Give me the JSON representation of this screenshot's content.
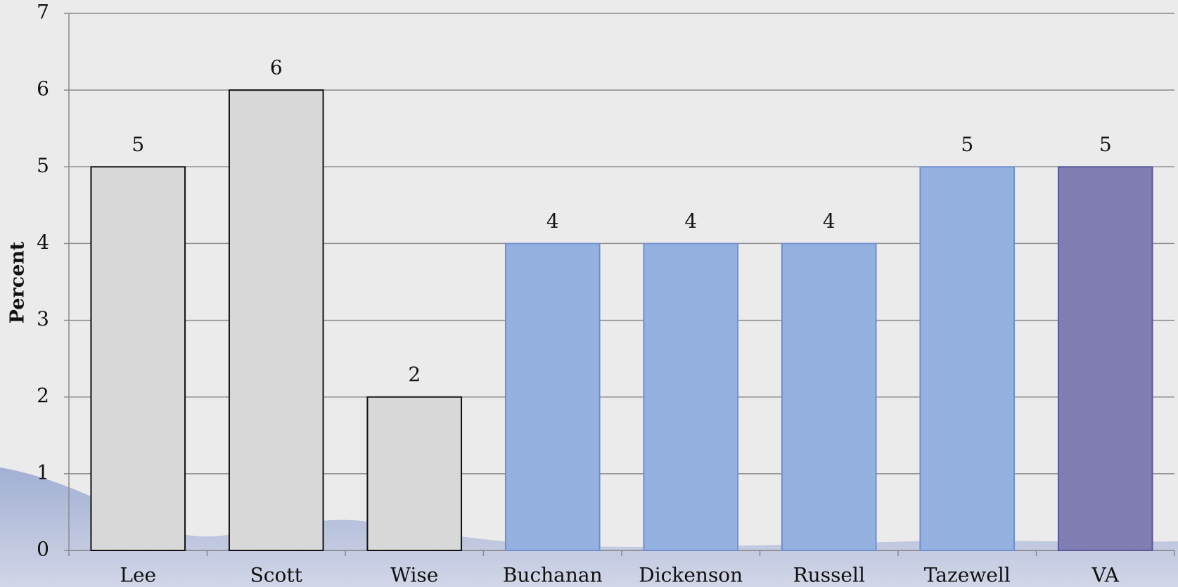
{
  "chart_data": {
    "type": "bar",
    "y_label": "Percent",
    "categories": [
      "Lee",
      "Scott",
      "Wise",
      "Buchanan",
      "Dickenson",
      "Russell",
      "Tazewell",
      "VA"
    ],
    "values": [
      5,
      6,
      2,
      4,
      4,
      4,
      5,
      5
    ],
    "colors": [
      "#d8d8d8",
      "#d8d8d8",
      "#d8d8d8",
      "#95b1df",
      "#95b1df",
      "#95b1df",
      "#95b1df",
      "#7f7db2"
    ],
    "edge_colors": [
      "#111111",
      "#111111",
      "#111111",
      "#6f8fcf",
      "#6f8fcf",
      "#6f8fcf",
      "#6f8fcf",
      "#5a589a"
    ],
    "ylim": [
      0,
      7
    ],
    "yticks": [
      0,
      1,
      2,
      3,
      4,
      5,
      6,
      7
    ],
    "grid": true
  }
}
